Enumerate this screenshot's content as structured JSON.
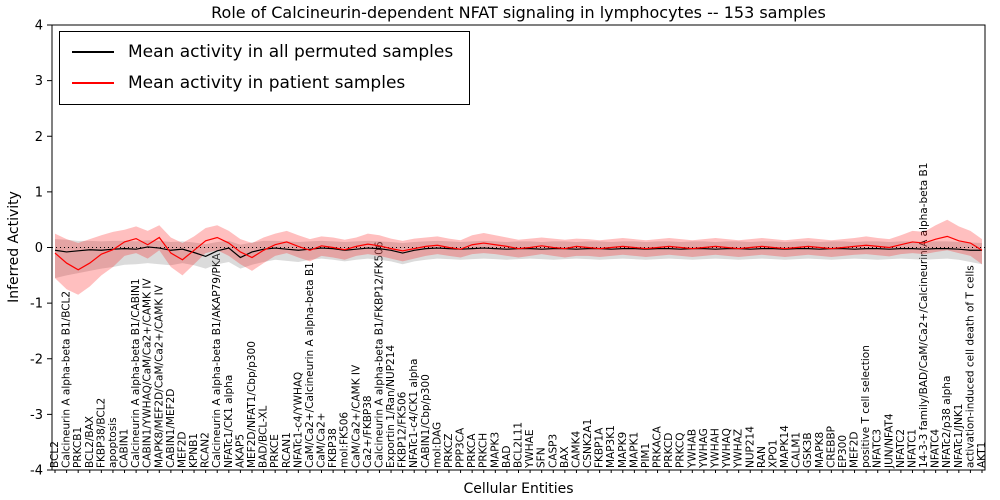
{
  "chart_data": {
    "type": "line",
    "title": "Role of Calcineurin-dependent NFAT signaling in lymphocytes -- 153 samples",
    "xlabel": "Cellular Entities",
    "ylabel": "Inferred Activity",
    "ylim": [
      -4,
      4
    ],
    "yticks": [
      -4,
      -3,
      -2,
      -1,
      0,
      1,
      2,
      3,
      4
    ],
    "grid": false,
    "zero_line": true,
    "legend_position": "upper left",
    "samples_count": 153,
    "categories": [
      "BCL2",
      "Calcineurin A alpha-beta B1/BCL2",
      "PRKCB1",
      "BCL2/BAX",
      "FKBP38/BCL2",
      "apoptosis",
      "CABIN1",
      "Calcineurin A alpha-beta B1/CABIN1",
      "CABIN1/YWHAQ/CaM/Ca2+/CAMK IV",
      "MAPK8/MEF2D/CaM/Ca2+/CAMK IV",
      "CABIN1/MEF2D",
      "MEF2D",
      "KPNB1",
      "RCAN2",
      "Calcineurin A alpha-beta B1/AKAP79/PKA",
      "NFATc1/CK1 alpha",
      "AKAP5",
      "MEF2D/NFAT1/Cbp/p300",
      "BAD/BCL-XL",
      "PRKCE",
      "RCAN1",
      "NFATc1-c4/YWHAQ",
      "CaM/Ca2+/Calcineurin A alpha-beta B1",
      "CaM/Ca2+",
      "FKBP38",
      "mol:FK506",
      "CaM/Ca2+/CAMK IV",
      "Ca2+/FKBP38",
      "Calcineurin A alpha-beta B1/FKBP12/FK506",
      "Exportin 1/Ran/NUP214",
      "FKBP12/FK506",
      "NFATc1-c4/CK1 alpha",
      "CABIN1/Cbp/p300",
      "mol:DAG",
      "PRKCZ",
      "PPP3CA",
      "PRKCA",
      "PRKCH",
      "MAPK3",
      "BAD",
      "BCL2L11",
      "YWHAE",
      "SFN",
      "CASP3",
      "BAX",
      "CAMK4",
      "CSNK2A1",
      "FKBP1A",
      "MAP3K1",
      "MAPK9",
      "MAPK1",
      "PIM1",
      "PRKACA",
      "PRKCD",
      "PRKCQ",
      "YWHAB",
      "YWHAG",
      "YWHAH",
      "YWHAQ",
      "YWHAZ",
      "NUP214",
      "RAN",
      "XPO1",
      "MAPK14",
      "CALM1",
      "GSK3B",
      "MAPK8",
      "CREBBP",
      "EP300",
      "MEF2D",
      "positive T cell selection",
      "NFATC3",
      "JUN/NFAT4",
      "NFATC2",
      "NFATC1",
      "14-3-3 family/BAD/CaM/Ca2+/Calcineurin A alpha-beta B1",
      "NFATC4",
      "NFATc2/p38 alpha",
      "NFATc1/JNK1",
      "activation-induced cell death of T cells",
      "AKT1"
    ],
    "series": [
      {
        "key": "permuted",
        "name": "Mean activity in all permuted samples",
        "color": "#000000",
        "band_color": "#999999",
        "band_opacity": 0.35,
        "values": [
          -0.05,
          -0.08,
          -0.06,
          -0.04,
          -0.05,
          -0.03,
          -0.02,
          -0.03,
          0.01,
          -0.01,
          -0.05,
          -0.03,
          -0.09,
          -0.16,
          -0.06,
          -0.01,
          -0.18,
          -0.08,
          -0.03,
          -0.01,
          -0.03,
          -0.05,
          -0.03,
          -0.01,
          -0.02,
          -0.05,
          -0.03,
          -0.01,
          -0.02,
          -0.05,
          -0.1,
          -0.05,
          -0.02,
          -0.01,
          -0.02,
          -0.03,
          -0.02,
          -0.01,
          -0.02,
          -0.03,
          -0.02,
          -0.02,
          -0.03,
          -0.02,
          -0.02,
          -0.03,
          -0.02,
          -0.02,
          -0.03,
          -0.02,
          -0.02,
          -0.03,
          -0.02,
          -0.02,
          -0.03,
          -0.02,
          -0.02,
          -0.03,
          -0.02,
          -0.02,
          -0.03,
          -0.02,
          -0.02,
          -0.03,
          -0.02,
          -0.02,
          -0.03,
          -0.02,
          -0.02,
          -0.03,
          -0.02,
          -0.02,
          -0.03,
          -0.02,
          -0.02,
          -0.03,
          -0.02,
          -0.02,
          -0.03,
          -0.05,
          -0.05
        ],
        "band_low": [
          -0.55,
          -0.5,
          -0.46,
          -0.42,
          -0.38,
          -0.35,
          -0.31,
          -0.3,
          -0.28,
          -0.3,
          -0.32,
          -0.28,
          -0.32,
          -0.38,
          -0.3,
          -0.26,
          -0.38,
          -0.31,
          -0.26,
          -0.22,
          -0.24,
          -0.26,
          -0.22,
          -0.2,
          -0.22,
          -0.25,
          -0.22,
          -0.2,
          -0.22,
          -0.25,
          -0.3,
          -0.25,
          -0.22,
          -0.2,
          -0.21,
          -0.22,
          -0.21,
          -0.2,
          -0.21,
          -0.22,
          -0.21,
          -0.2,
          -0.21,
          -0.22,
          -0.21,
          -0.2,
          -0.21,
          -0.22,
          -0.21,
          -0.2,
          -0.21,
          -0.22,
          -0.21,
          -0.2,
          -0.21,
          -0.22,
          -0.21,
          -0.2,
          -0.21,
          -0.22,
          -0.21,
          -0.2,
          -0.21,
          -0.22,
          -0.21,
          -0.2,
          -0.21,
          -0.22,
          -0.21,
          -0.2,
          -0.21,
          -0.22,
          -0.21,
          -0.2,
          -0.21,
          -0.22,
          -0.21,
          -0.2,
          -0.22,
          -0.26,
          -0.3
        ],
        "band_high": [
          0.15,
          0.14,
          0.12,
          0.12,
          0.11,
          0.12,
          0.12,
          0.11,
          0.13,
          0.12,
          0.1,
          0.11,
          0.09,
          0.06,
          0.1,
          0.12,
          0.05,
          0.09,
          0.12,
          0.12,
          0.11,
          0.1,
          0.11,
          0.12,
          0.11,
          0.1,
          0.11,
          0.12,
          0.11,
          0.1,
          0.08,
          0.1,
          0.11,
          0.12,
          0.11,
          0.1,
          0.11,
          0.12,
          0.11,
          0.1,
          0.11,
          0.11,
          0.1,
          0.11,
          0.11,
          0.1,
          0.11,
          0.11,
          0.1,
          0.11,
          0.11,
          0.1,
          0.11,
          0.11,
          0.1,
          0.11,
          0.11,
          0.1,
          0.11,
          0.11,
          0.1,
          0.11,
          0.11,
          0.1,
          0.11,
          0.11,
          0.1,
          0.11,
          0.11,
          0.1,
          0.11,
          0.11,
          0.1,
          0.11,
          0.11,
          0.1,
          0.11,
          0.11,
          0.1,
          0.09,
          0.08
        ]
      },
      {
        "key": "patient",
        "name": "Mean activity in patient samples",
        "color": "#ff0000",
        "band_color": "#ff0000",
        "band_opacity": 0.25,
        "values": [
          -0.1,
          -0.28,
          -0.4,
          -0.28,
          -0.12,
          -0.04,
          0.1,
          0.16,
          0.05,
          0.18,
          -0.1,
          -0.22,
          -0.05,
          0.12,
          0.18,
          0.08,
          -0.08,
          -0.18,
          -0.05,
          0.05,
          0.1,
          0.02,
          -0.05,
          0.03,
          0.0,
          -0.04,
          0.02,
          0.06,
          0.03,
          -0.02,
          -0.06,
          -0.02,
          0.02,
          0.04,
          0.0,
          -0.03,
          0.05,
          0.08,
          0.05,
          0.02,
          -0.02,
          0.0,
          0.03,
          0.0,
          -0.02,
          0.02,
          0.0,
          -0.02,
          0.0,
          0.02,
          0.0,
          -0.02,
          0.0,
          0.02,
          0.0,
          -0.02,
          0.0,
          0.02,
          0.0,
          -0.02,
          0.0,
          0.02,
          0.0,
          -0.02,
          0.0,
          0.02,
          0.0,
          -0.02,
          0.0,
          0.02,
          0.04,
          0.02,
          0.0,
          0.05,
          0.1,
          0.08,
          0.15,
          0.2,
          0.12,
          0.08,
          -0.05
        ],
        "band_low": [
          -0.55,
          -0.75,
          -0.85,
          -0.7,
          -0.5,
          -0.35,
          -0.15,
          -0.1,
          -0.2,
          -0.05,
          -0.35,
          -0.5,
          -0.3,
          -0.1,
          -0.05,
          -0.15,
          -0.3,
          -0.42,
          -0.28,
          -0.15,
          -0.1,
          -0.18,
          -0.25,
          -0.15,
          -0.18,
          -0.22,
          -0.15,
          -0.12,
          -0.15,
          -0.2,
          -0.25,
          -0.2,
          -0.15,
          -0.12,
          -0.15,
          -0.18,
          -0.12,
          -0.1,
          -0.12,
          -0.15,
          -0.18,
          -0.15,
          -0.12,
          -0.15,
          -0.18,
          -0.15,
          -0.15,
          -0.17,
          -0.15,
          -0.13,
          -0.15,
          -0.17,
          -0.15,
          -0.13,
          -0.15,
          -0.17,
          -0.15,
          -0.13,
          -0.15,
          -0.17,
          -0.15,
          -0.13,
          -0.15,
          -0.17,
          -0.15,
          -0.13,
          -0.15,
          -0.17,
          -0.15,
          -0.13,
          -0.12,
          -0.14,
          -0.16,
          -0.12,
          -0.1,
          -0.12,
          -0.08,
          -0.05,
          -0.1,
          -0.15,
          -0.3
        ],
        "band_high": [
          0.25,
          0.15,
          0.08,
          0.15,
          0.22,
          0.28,
          0.32,
          0.38,
          0.3,
          0.4,
          0.18,
          0.08,
          0.2,
          0.35,
          0.4,
          0.3,
          0.15,
          0.08,
          0.18,
          0.25,
          0.3,
          0.22,
          0.15,
          0.2,
          0.18,
          0.14,
          0.18,
          0.25,
          0.22,
          0.16,
          0.12,
          0.16,
          0.18,
          0.2,
          0.16,
          0.13,
          0.22,
          0.26,
          0.22,
          0.18,
          0.14,
          0.16,
          0.18,
          0.16,
          0.14,
          0.16,
          0.15,
          0.13,
          0.15,
          0.17,
          0.15,
          0.13,
          0.15,
          0.17,
          0.15,
          0.13,
          0.15,
          0.17,
          0.15,
          0.13,
          0.15,
          0.17,
          0.15,
          0.13,
          0.15,
          0.17,
          0.15,
          0.13,
          0.15,
          0.17,
          0.2,
          0.17,
          0.15,
          0.22,
          0.3,
          0.28,
          0.4,
          0.5,
          0.38,
          0.3,
          0.15
        ]
      }
    ]
  }
}
